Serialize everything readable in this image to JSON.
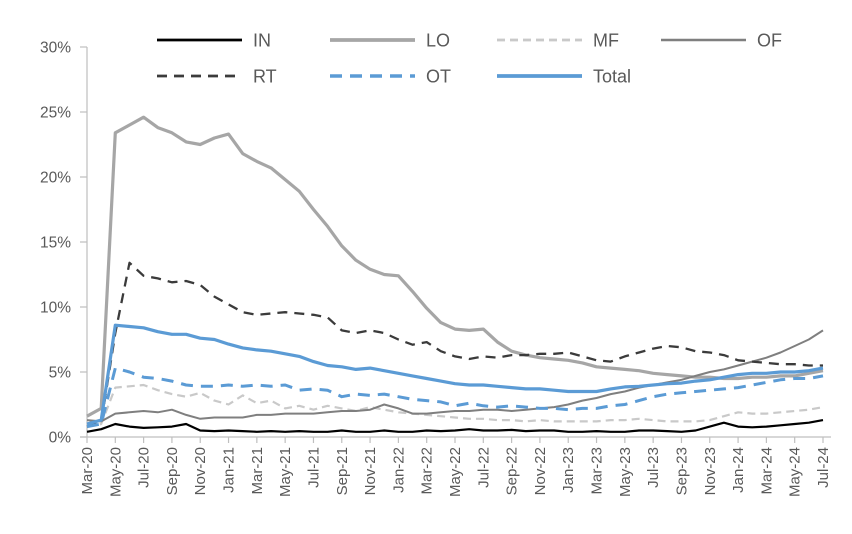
{
  "chart_data": {
    "type": "line",
    "title": "",
    "xlabel": "",
    "ylabel": "",
    "ylim": [
      0,
      30
    ],
    "y_ticks": [
      0,
      5,
      10,
      15,
      20,
      25,
      30
    ],
    "y_tick_suffix": "%",
    "x_tick_interval": 2,
    "grid": false,
    "legend_position": "top",
    "legend_rows": [
      [
        "IN",
        "LO",
        "MF",
        "OF"
      ],
      [
        "RT",
        "OT",
        "Total"
      ]
    ],
    "axis_color": "#BFBFBF",
    "text_color": "#595959",
    "accent_blue": "#5B9BD5",
    "x": [
      "Mar-20",
      "Apr-20",
      "May-20",
      "Jun-20",
      "Jul-20",
      "Aug-20",
      "Sep-20",
      "Oct-20",
      "Nov-20",
      "Dec-20",
      "Jan-21",
      "Feb-21",
      "Mar-21",
      "Apr-21",
      "May-21",
      "Jun-21",
      "Jul-21",
      "Aug-21",
      "Sep-21",
      "Oct-21",
      "Nov-21",
      "Dec-21",
      "Jan-22",
      "Feb-22",
      "Mar-22",
      "Apr-22",
      "May-22",
      "Jun-22",
      "Jul-22",
      "Aug-22",
      "Sep-22",
      "Oct-22",
      "Nov-22",
      "Dec-22",
      "Jan-23",
      "Feb-23",
      "Mar-23",
      "Apr-23",
      "May-23",
      "Jun-23",
      "Jul-23",
      "Aug-23",
      "Sep-23",
      "Oct-23",
      "Nov-23",
      "Dec-23",
      "Jan-24",
      "Feb-24",
      "Mar-24",
      "Apr-24",
      "May-24",
      "Jun-24",
      "Jul-24"
    ],
    "series": [
      {
        "name": "IN",
        "color": "#000000",
        "dash": "solid",
        "width": 2.2,
        "dasharray": "",
        "values": [
          0.4,
          0.6,
          1.0,
          0.8,
          0.7,
          0.75,
          0.8,
          1.0,
          0.5,
          0.45,
          0.5,
          0.45,
          0.4,
          0.45,
          0.4,
          0.45,
          0.4,
          0.4,
          0.5,
          0.4,
          0.4,
          0.5,
          0.4,
          0.4,
          0.5,
          0.45,
          0.5,
          0.6,
          0.5,
          0.5,
          0.55,
          0.45,
          0.5,
          0.5,
          0.4,
          0.4,
          0.45,
          0.4,
          0.4,
          0.5,
          0.5,
          0.45,
          0.4,
          0.5,
          0.8,
          1.1,
          0.8,
          0.75,
          0.8,
          0.9,
          1.0,
          1.1,
          1.3
        ]
      },
      {
        "name": "LO",
        "color": "#A6A6A6",
        "dash": "solid",
        "width": 3.2,
        "dasharray": "",
        "values": [
          1.6,
          2.2,
          23.4,
          24.0,
          24.6,
          23.8,
          23.4,
          22.7,
          22.5,
          23.0,
          23.3,
          21.8,
          21.2,
          20.7,
          19.8,
          18.9,
          17.5,
          16.2,
          14.7,
          13.6,
          12.9,
          12.5,
          12.4,
          11.2,
          9.9,
          8.8,
          8.3,
          8.2,
          8.3,
          7.3,
          6.6,
          6.3,
          6.1,
          6.0,
          5.9,
          5.7,
          5.4,
          5.3,
          5.2,
          5.1,
          4.9,
          4.8,
          4.7,
          4.6,
          4.6,
          4.5,
          4.5,
          4.6,
          4.6,
          4.7,
          4.7,
          4.9,
          5.1
        ]
      },
      {
        "name": "MF",
        "color": "#C9C9C9",
        "dash": "dashed",
        "width": 2.2,
        "dasharray": "8 5",
        "values": [
          0.8,
          1.0,
          3.8,
          3.9,
          4.0,
          3.6,
          3.3,
          3.1,
          3.4,
          2.8,
          2.5,
          3.2,
          2.6,
          2.8,
          2.2,
          2.4,
          2.1,
          2.4,
          2.2,
          2.0,
          2.3,
          2.1,
          1.9,
          1.8,
          1.7,
          1.6,
          1.5,
          1.4,
          1.4,
          1.3,
          1.3,
          1.2,
          1.3,
          1.2,
          1.2,
          1.2,
          1.2,
          1.3,
          1.3,
          1.4,
          1.3,
          1.2,
          1.2,
          1.2,
          1.3,
          1.6,
          1.9,
          1.8,
          1.8,
          1.9,
          2.0,
          2.1,
          2.3
        ]
      },
      {
        "name": "OF",
        "color": "#7F7F7F",
        "dash": "solid",
        "width": 2.0,
        "dasharray": "",
        "values": [
          1.3,
          1.2,
          1.8,
          1.9,
          2.0,
          1.9,
          2.1,
          1.7,
          1.4,
          1.5,
          1.5,
          1.5,
          1.7,
          1.7,
          1.8,
          1.8,
          1.8,
          1.9,
          2.0,
          2.0,
          2.1,
          2.5,
          2.2,
          1.8,
          1.8,
          1.9,
          2.0,
          2.0,
          2.1,
          2.1,
          2.0,
          2.1,
          2.2,
          2.3,
          2.5,
          2.8,
          3.0,
          3.3,
          3.5,
          3.8,
          4.0,
          4.2,
          4.4,
          4.7,
          5.0,
          5.2,
          5.5,
          5.8,
          6.1,
          6.5,
          7.0,
          7.5,
          8.2
        ]
      },
      {
        "name": "RT",
        "color": "#3B3B3B",
        "dash": "dashed",
        "width": 2.3,
        "dasharray": "10 7",
        "values": [
          0.8,
          1.1,
          8.0,
          13.4,
          12.4,
          12.2,
          11.9,
          12.0,
          11.7,
          10.8,
          10.2,
          9.6,
          9.4,
          9.5,
          9.6,
          9.5,
          9.4,
          9.2,
          8.2,
          8.0,
          8.2,
          8.0,
          7.5,
          7.1,
          7.3,
          6.6,
          6.2,
          6.0,
          6.2,
          6.1,
          6.3,
          6.3,
          6.4,
          6.4,
          6.5,
          6.2,
          5.9,
          5.8,
          6.2,
          6.5,
          6.8,
          7.0,
          6.9,
          6.6,
          6.5,
          6.3,
          5.9,
          5.8,
          5.7,
          5.6,
          5.6,
          5.5,
          5.5
        ]
      },
      {
        "name": "OT",
        "color": "#5B9BD5",
        "dash": "dashed",
        "width": 3.0,
        "dasharray": "12 8",
        "values": [
          0.8,
          1.0,
          5.3,
          5.0,
          4.6,
          4.5,
          4.3,
          4.0,
          3.9,
          3.9,
          4.0,
          3.9,
          4.0,
          3.9,
          4.0,
          3.6,
          3.7,
          3.6,
          3.1,
          3.3,
          3.2,
          3.3,
          3.1,
          2.9,
          2.8,
          2.7,
          2.4,
          2.6,
          2.4,
          2.3,
          2.4,
          2.3,
          2.2,
          2.2,
          2.1,
          2.2,
          2.2,
          2.4,
          2.5,
          2.8,
          3.1,
          3.3,
          3.4,
          3.5,
          3.6,
          3.7,
          3.8,
          4.0,
          4.2,
          4.4,
          4.5,
          4.5,
          4.7
        ]
      },
      {
        "name": "Total",
        "color": "#5B9BD5",
        "dash": "solid",
        "width": 3.2,
        "dasharray": "",
        "values": [
          1.0,
          1.3,
          8.6,
          8.5,
          8.4,
          8.1,
          7.9,
          7.9,
          7.6,
          7.5,
          7.15,
          6.85,
          6.7,
          6.6,
          6.4,
          6.2,
          5.8,
          5.5,
          5.4,
          5.2,
          5.3,
          5.1,
          4.9,
          4.7,
          4.5,
          4.3,
          4.1,
          4.0,
          4.0,
          3.9,
          3.8,
          3.7,
          3.7,
          3.6,
          3.5,
          3.5,
          3.5,
          3.7,
          3.85,
          3.9,
          4.0,
          4.1,
          4.15,
          4.3,
          4.4,
          4.6,
          4.8,
          4.9,
          4.9,
          5.0,
          5.0,
          5.1,
          5.3
        ]
      }
    ]
  }
}
